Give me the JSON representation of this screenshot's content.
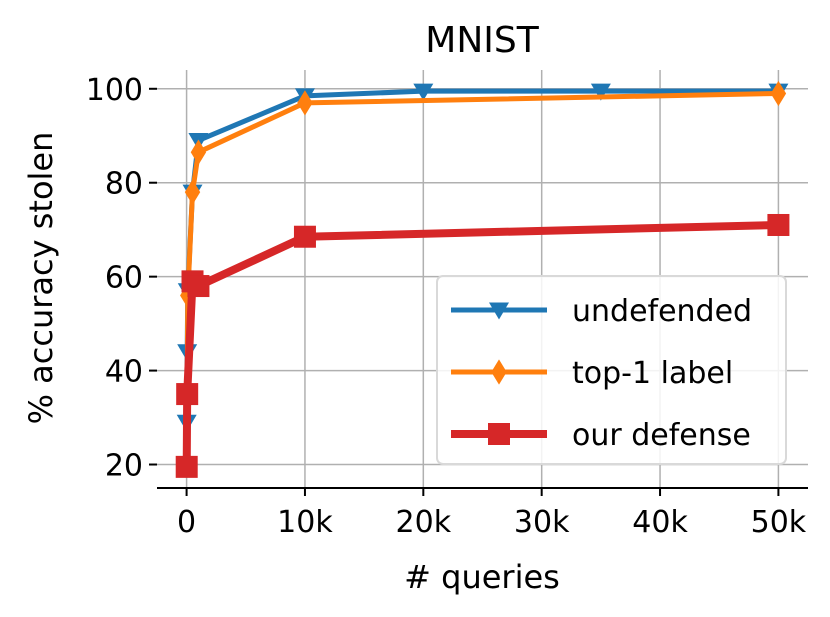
{
  "chart_data": {
    "type": "line",
    "title": "MNIST",
    "xlabel": "# queries",
    "ylabel": "% accuracy stolen",
    "xlim": [
      -2500,
      52500
    ],
    "ylim": [
      15,
      104
    ],
    "xticks": [
      0,
      10000,
      20000,
      30000,
      40000,
      50000
    ],
    "xtick_labels": [
      "0",
      "10k",
      "20k",
      "30k",
      "40k",
      "50k"
    ],
    "yticks": [
      20,
      40,
      60,
      80,
      100
    ],
    "ytick_labels": [
      "20",
      "40",
      "60",
      "80",
      "100"
    ],
    "grid": true,
    "legend_position": "lower right",
    "series": [
      {
        "name": "undefended",
        "color": "#1f77b4",
        "marker": "triangle-down",
        "x": [
          10,
          50,
          100,
          500,
          1000,
          10000,
          20000,
          35000,
          50000
        ],
        "y": [
          29,
          44,
          57,
          78,
          89,
          98.5,
          99.5,
          99.5,
          99.5
        ]
      },
      {
        "name": "top-1 label",
        "color": "#ff7f0e",
        "marker": "diamond",
        "x": [
          10,
          50,
          100,
          500,
          1000,
          10000,
          50000
        ],
        "y": [
          20,
          35,
          56,
          78,
          86.5,
          97,
          99
        ]
      },
      {
        "name": "our defense",
        "color": "#d62728",
        "marker": "square",
        "x": [
          10,
          50,
          500,
          1000,
          10000,
          50000
        ],
        "y": [
          19.5,
          35,
          59,
          58,
          68.5,
          71
        ]
      }
    ]
  }
}
